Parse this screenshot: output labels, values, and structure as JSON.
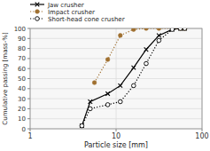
{
  "chart_data": {
    "type": "line",
    "xlabel": "Particle size [mm]",
    "ylabel": "Cumulative passing [mass-%]",
    "log": "x",
    "xlim": [
      1,
      100
    ],
    "ylim": [
      0,
      100
    ],
    "xticks": [
      1,
      10,
      100
    ],
    "yticks": [
      0,
      10,
      20,
      30,
      40,
      50,
      60,
      70,
      80,
      90,
      100
    ],
    "grid": true,
    "legend": "upper left",
    "series": [
      {
        "name": "Jaw crusher",
        "color": "#000000",
        "marker": "x",
        "line_style": "solid",
        "x": [
          4,
          5,
          8,
          11.2,
          16,
          22.4,
          31.5,
          45,
          56,
          63
        ],
        "values": [
          3,
          27,
          35,
          43,
          61,
          79,
          93,
          99,
          100,
          100
        ]
      },
      {
        "name": "Impact crusher",
        "color": "#a07030",
        "marker": "circle",
        "line_style": "dotted",
        "x": [
          5.6,
          8,
          11.2,
          16,
          22.4,
          31.5,
          45,
          56,
          63
        ],
        "values": [
          46,
          69,
          93,
          99,
          100,
          100,
          100,
          100,
          100
        ]
      },
      {
        "name": "Short-head cone crusher",
        "color": "#000000",
        "marker": "circle-open",
        "line_style": "dotted",
        "x": [
          4,
          5,
          8,
          11.2,
          16,
          22.4,
          31.5,
          45,
          56,
          63
        ],
        "values": [
          3,
          20,
          24,
          27,
          43,
          65,
          88,
          99,
          100,
          100
        ]
      }
    ]
  }
}
